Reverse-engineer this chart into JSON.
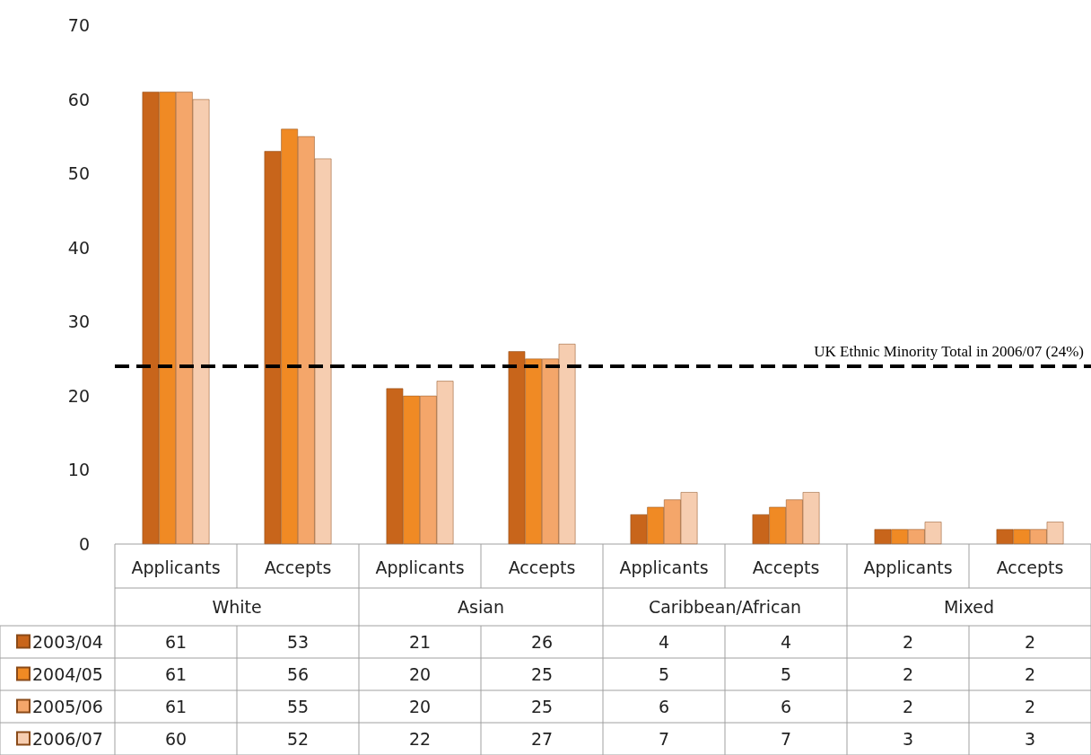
{
  "chart_data": {
    "type": "bar",
    "categories": [
      "Applicants",
      "Accepts",
      "Applicants",
      "Accepts",
      "Applicants",
      "Accepts",
      "Applicants",
      "Accepts"
    ],
    "annotations": [
      "White",
      "Asian",
      "Caribbean/African",
      "Mixed"
    ],
    "series": [
      {
        "name": "2003/04",
        "color": "#c8651b",
        "values": [
          61,
          53,
          21,
          26,
          4,
          4,
          2,
          2
        ]
      },
      {
        "name": "2004/05",
        "color": "#f08a24",
        "values": [
          61,
          56,
          20,
          25,
          5,
          5,
          2,
          2
        ]
      },
      {
        "name": "2005/06",
        "color": "#f4a66a",
        "values": [
          61,
          55,
          20,
          25,
          6,
          6,
          2,
          2
        ]
      },
      {
        "name": "2006/07",
        "color": "#f6cdb0",
        "values": [
          60,
          52,
          22,
          27,
          7,
          7,
          3,
          3
        ]
      }
    ],
    "ylim": [
      0,
      70
    ],
    "yticks": [
      0,
      10,
      20,
      30,
      40,
      50,
      60,
      70
    ],
    "grid": false,
    "legend": "bottom left",
    "data_labels": true,
    "ref_lines": [
      {
        "axis": "y",
        "value": 24,
        "label": "UK Ethnic Minority Total in 2006/07 (24%)",
        "color": "#000000",
        "line_style": "dashed"
      }
    ]
  }
}
